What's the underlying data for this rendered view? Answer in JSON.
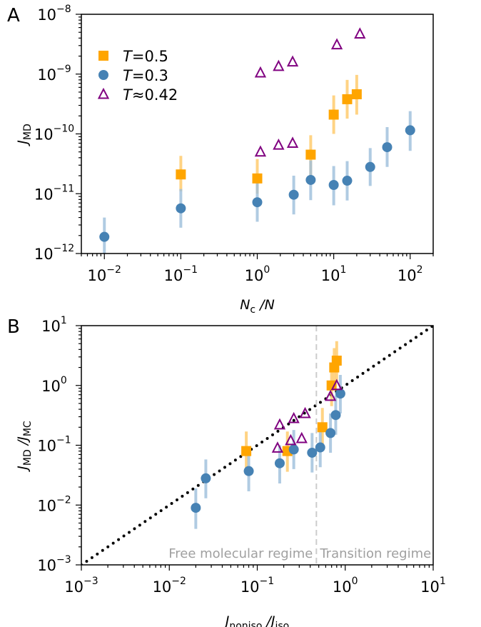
{
  "colors": {
    "t05": "#ffa500",
    "t05err": "#ffc966",
    "t03": "#4682b4",
    "t03err": "#9dbfdc",
    "t042": "#800080"
  },
  "chart_data": [
    {
      "type": "scatter",
      "panel": "A",
      "xscale": "log",
      "yscale": "log",
      "xlim": [
        0.005,
        200
      ],
      "ylim": [
        1e-12,
        1e-08
      ],
      "xlabel": {
        "main": "N",
        "sub": "c",
        "rest": " /N"
      },
      "ylabel": {
        "main": "J",
        "sub": "MD"
      },
      "xticks": [
        {
          "v": 0.01,
          "e": "−2"
        },
        {
          "v": 0.1,
          "e": "−1"
        },
        {
          "v": 1,
          "e": "0"
        },
        {
          "v": 10,
          "e": "1"
        },
        {
          "v": 100,
          "e": "2"
        }
      ],
      "yticks": [
        {
          "v": 1e-12,
          "e": "−12"
        },
        {
          "v": 1e-11,
          "e": "−11"
        },
        {
          "v": 1e-10,
          "e": "−10"
        },
        {
          "v": 1e-09,
          "e": "−9"
        },
        {
          "v": 1e-08,
          "e": "−8"
        }
      ],
      "legend": {
        "placement": "top-left",
        "entries": [
          "T = 0.5",
          "T = 0.3",
          "T ≈ 0.42"
        ]
      },
      "series": [
        {
          "name": "T = 0.5",
          "marker": "square",
          "points": [
            [
              0.1,
              2.1e-11,
              1.1e-11,
              4.3e-11
            ],
            [
              1,
              1.8e-11,
              1e-11,
              3.8e-11
            ],
            [
              5,
              4.5e-11,
              2e-11,
              9.5e-11
            ],
            [
              10,
              2.1e-10,
              1e-10,
              4.4e-10
            ],
            [
              15,
              3.8e-10,
              1.8e-10,
              8e-10
            ],
            [
              20,
              4.6e-10,
              2.1e-10,
              9.7e-10
            ]
          ]
        },
        {
          "name": "T = 0.3",
          "marker": "circle",
          "points": [
            [
              0.01,
              1.9e-12,
              8e-13,
              4e-12
            ],
            [
              0.1,
              5.7e-12,
              2.7e-12,
              1.2e-11
            ],
            [
              1,
              7.2e-12,
              3.4e-12,
              1.5e-11
            ],
            [
              3,
              9.6e-12,
              4.5e-12,
              2e-11
            ],
            [
              5,
              1.7e-11,
              7.8e-12,
              3.6e-11
            ],
            [
              10,
              1.4e-11,
              6.4e-12,
              2.9e-11
            ],
            [
              15,
              1.65e-11,
              7.7e-12,
              3.5e-11
            ],
            [
              30,
              2.8e-11,
              1.35e-11,
              5.8e-11
            ],
            [
              50,
              6e-11,
              2.8e-11,
              1.3e-10
            ],
            [
              100,
              1.15e-10,
              5.2e-11,
              2.4e-10
            ]
          ]
        },
        {
          "name": "T ≈ 0.42",
          "marker": "triangle",
          "points": [
            [
              1.1,
              1.05e-09
            ],
            [
              1.9,
              1.35e-09
            ],
            [
              2.9,
              1.6e-09
            ],
            [
              11,
              3.1e-09
            ],
            [
              22,
              4.7e-09
            ],
            [
              1.1,
              5e-11
            ],
            [
              1.9,
              6.5e-11
            ],
            [
              2.9,
              7e-11
            ]
          ]
        }
      ]
    },
    {
      "type": "scatter",
      "panel": "B",
      "xscale": "log",
      "yscale": "log",
      "xlim": [
        0.001,
        10
      ],
      "ylim": [
        0.001,
        10
      ],
      "xlabel": {
        "main": "J",
        "sub": "noniso",
        "rest": " /",
        "main2": "J",
        "sub2": "iso"
      },
      "ylabel": {
        "main": "J",
        "sub": "MD",
        "rest": " /",
        "main2": "J",
        "sub2": "MC"
      },
      "xticks": [
        {
          "v": 0.001,
          "e": "−3"
        },
        {
          "v": 0.01,
          "e": "−2"
        },
        {
          "v": 0.1,
          "e": "−1"
        },
        {
          "v": 1,
          "e": "0"
        },
        {
          "v": 10,
          "e": "1"
        }
      ],
      "yticks": [
        {
          "v": 0.001,
          "e": "−3"
        },
        {
          "v": 0.01,
          "e": "−2"
        },
        {
          "v": 0.1,
          "e": "−1"
        },
        {
          "v": 1,
          "e": "0"
        },
        {
          "v": 10,
          "e": "1"
        }
      ],
      "reference_line": "y = x (dotted)",
      "regime_boundary_x": 0.47,
      "annotations": [
        "Free molecular regime",
        "Transition regime"
      ],
      "series": [
        {
          "name": "T = 0.5",
          "marker": "square",
          "points": [
            [
              0.075,
              0.08,
              0.036,
              0.17
            ],
            [
              0.22,
              0.08,
              0.036,
              0.17
            ],
            [
              0.55,
              0.2,
              0.09,
              0.42
            ],
            [
              0.7,
              1.0,
              0.45,
              2.2
            ],
            [
              0.75,
              2.0,
              0.9,
              4.2
            ],
            [
              0.8,
              2.6,
              1.2,
              5.5
            ]
          ]
        },
        {
          "name": "T = 0.3",
          "marker": "circle",
          "points": [
            [
              0.02,
              0.009,
              0.004,
              0.019
            ],
            [
              0.026,
              0.028,
              0.013,
              0.058
            ],
            [
              0.08,
              0.037,
              0.017,
              0.078
            ],
            [
              0.18,
              0.05,
              0.023,
              0.1
            ],
            [
              0.26,
              0.085,
              0.04,
              0.18
            ],
            [
              0.42,
              0.075,
              0.035,
              0.16
            ],
            [
              0.52,
              0.092,
              0.043,
              0.19
            ],
            [
              0.68,
              0.16,
              0.075,
              0.34
            ],
            [
              0.78,
              0.32,
              0.15,
              0.68
            ],
            [
              0.88,
              0.73,
              0.34,
              1.5
            ]
          ]
        },
        {
          "name": "T ≈ 0.42",
          "marker": "triangle",
          "points": [
            [
              0.17,
              0.09
            ],
            [
              0.18,
              0.22
            ],
            [
              0.24,
              0.12
            ],
            [
              0.26,
              0.28
            ],
            [
              0.32,
              0.13
            ],
            [
              0.35,
              0.34
            ],
            [
              0.68,
              0.66
            ],
            [
              0.8,
              1.0
            ]
          ]
        }
      ]
    }
  ]
}
